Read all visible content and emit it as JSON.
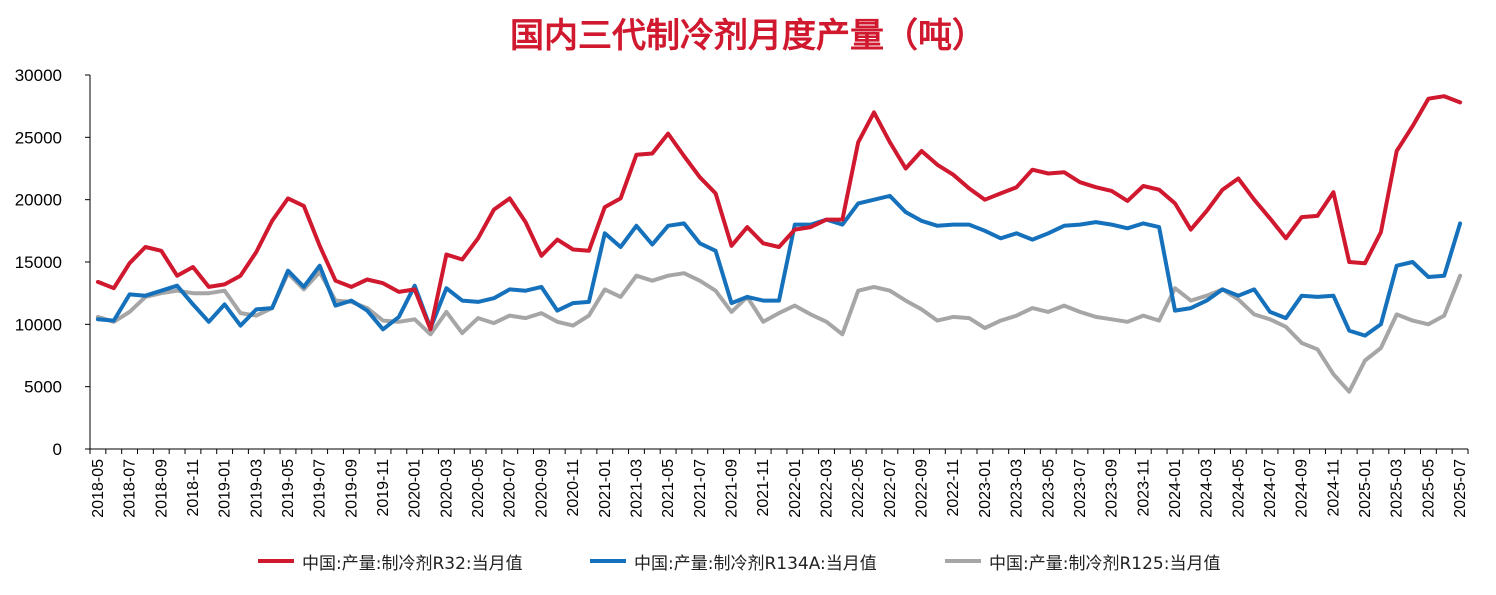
{
  "chart_data": {
    "type": "line",
    "title": "国内三代制冷剂月度产量（吨）",
    "ylim": [
      0,
      30000
    ],
    "yticks": [
      0,
      5000,
      10000,
      15000,
      20000,
      25000,
      30000
    ],
    "grid": false,
    "legend_position": "bottom",
    "x": [
      "2018-05",
      "2018-06",
      "2018-07",
      "2018-08",
      "2018-09",
      "2018-10",
      "2018-11",
      "2018-12",
      "2019-01",
      "2019-02",
      "2019-03",
      "2019-04",
      "2019-05",
      "2019-06",
      "2019-07",
      "2019-08",
      "2019-09",
      "2019-10",
      "2019-11",
      "2019-12",
      "2020-01",
      "2020-02",
      "2020-03",
      "2020-04",
      "2020-05",
      "2020-06",
      "2020-07",
      "2020-08",
      "2020-09",
      "2020-10",
      "2020-11",
      "2020-12",
      "2021-01",
      "2021-02",
      "2021-03",
      "2021-04",
      "2021-05",
      "2021-06",
      "2021-07",
      "2021-08",
      "2021-09",
      "2021-10",
      "2021-11",
      "2021-12",
      "2022-01",
      "2022-02",
      "2022-03",
      "2022-04",
      "2022-05",
      "2022-06",
      "2022-07",
      "2022-08",
      "2022-09",
      "2022-10",
      "2022-11",
      "2022-12",
      "2023-01",
      "2023-02",
      "2023-03",
      "2023-04",
      "2023-05",
      "2023-06",
      "2023-07",
      "2023-08",
      "2023-09",
      "2023-10",
      "2023-11",
      "2023-12",
      "2024-01",
      "2024-02",
      "2024-03",
      "2024-04",
      "2024-05",
      "2024-06",
      "2024-07",
      "2024-08",
      "2024-09",
      "2024-10",
      "2024-11",
      "2024-12",
      "2025-01",
      "2025-02",
      "2025-03",
      "2025-04",
      "2025-05",
      "2025-06",
      "2025-07"
    ],
    "xtick_labels": [
      "2018-05",
      "2018-07",
      "2018-09",
      "2018-11",
      "2019-01",
      "2019-03",
      "2019-05",
      "2019-07",
      "2019-09",
      "2019-11",
      "2020-01",
      "2020-03",
      "2020-05",
      "2020-07",
      "2020-09",
      "2020-11",
      "2021-01",
      "2021-03",
      "2021-05",
      "2021-07",
      "2021-09",
      "2021-11",
      "2022-01",
      "2022-03",
      "2022-05",
      "2022-07",
      "2022-09",
      "2022-11",
      "2023-01",
      "2023-03",
      "2023-05",
      "2023-07",
      "2023-09",
      "2023-11",
      "2024-01",
      "2024-03",
      "2024-05",
      "2024-07",
      "2024-09",
      "2024-11",
      "2025-01",
      "2025-03",
      "2025-05",
      "2025-07"
    ],
    "series": [
      {
        "name": "中国:产量:制冷剂R32:当月值",
        "color": "#d0182f",
        "values": [
          13400,
          12900,
          14900,
          16200,
          15900,
          13900,
          14600,
          13000,
          13200,
          13900,
          15800,
          18300,
          20100,
          19500,
          16300,
          13500,
          13000,
          13600,
          13300,
          12600,
          12800,
          9600,
          15600,
          15200,
          16900,
          19200,
          20100,
          18200,
          15500,
          16800,
          16000,
          15900,
          19400,
          20100,
          23600,
          23700,
          25300,
          23500,
          21800,
          20500,
          16300,
          17800,
          16500,
          16200,
          17600,
          17800,
          18400,
          18400,
          24600,
          27000,
          24600,
          22500,
          23900,
          22800,
          22000,
          20900,
          20000,
          20500,
          21000,
          22400,
          22100,
          22200,
          21400,
          21000,
          20700,
          19900,
          21100,
          20800,
          19700,
          17600,
          19100,
          20800,
          21700,
          20000,
          18500,
          16900,
          18600,
          18700,
          20600,
          15000,
          14900,
          17400,
          23900,
          25900,
          28100,
          28300,
          27800
        ]
      },
      {
        "name": "中国:产量:制冷剂R134A:当月值",
        "color": "#1571bb",
        "values": [
          10400,
          10300,
          12400,
          12300,
          12700,
          13100,
          11600,
          10200,
          11600,
          9900,
          11200,
          11300,
          14300,
          13000,
          14700,
          11500,
          11900,
          11100,
          9600,
          10600,
          13100,
          9700,
          12900,
          11900,
          11800,
          12100,
          12800,
          12700,
          13000,
          11100,
          11700,
          11800,
          17300,
          16200,
          17900,
          16400,
          17900,
          18100,
          16500,
          15900,
          11700,
          12200,
          11900,
          11900,
          18000,
          18000,
          18400,
          18000,
          19700,
          20000,
          20300,
          19000,
          18300,
          17900,
          18000,
          18000,
          17500,
          16900,
          17300,
          16800,
          17300,
          17900,
          18000,
          18200,
          18000,
          17700,
          18100,
          17800,
          11100,
          11300,
          11900,
          12800,
          12300,
          12800,
          11000,
          10500,
          12300,
          12200,
          12300,
          9500,
          9100,
          10000,
          14700,
          15000,
          13800,
          13900,
          18100
        ]
      },
      {
        "name": "中国:产量:制冷剂R125:当月值",
        "color": "#a6a6a6",
        "values": [
          10600,
          10200,
          11000,
          12200,
          12500,
          12700,
          12500,
          12500,
          12700,
          10900,
          10700,
          11300,
          14100,
          12800,
          14200,
          11900,
          11800,
          11300,
          10300,
          10200,
          10400,
          9200,
          11000,
          9300,
          10500,
          10100,
          10700,
          10500,
          10900,
          10200,
          9900,
          10700,
          12800,
          12200,
          13900,
          13500,
          13900,
          14100,
          13500,
          12700,
          11000,
          12200,
          10200,
          10900,
          11500,
          10800,
          10200,
          9200,
          12700,
          13000,
          12700,
          11900,
          11200,
          10300,
          10600,
          10500,
          9700,
          10300,
          10700,
          11300,
          11000,
          11500,
          11000,
          10600,
          10400,
          10200,
          10700,
          10300,
          12900,
          11900,
          12300,
          12800,
          12000,
          10800,
          10400,
          9800,
          8500,
          8000,
          6000,
          4600,
          7100,
          8100,
          10800,
          10300,
          10000,
          10700,
          13900
        ]
      }
    ]
  }
}
